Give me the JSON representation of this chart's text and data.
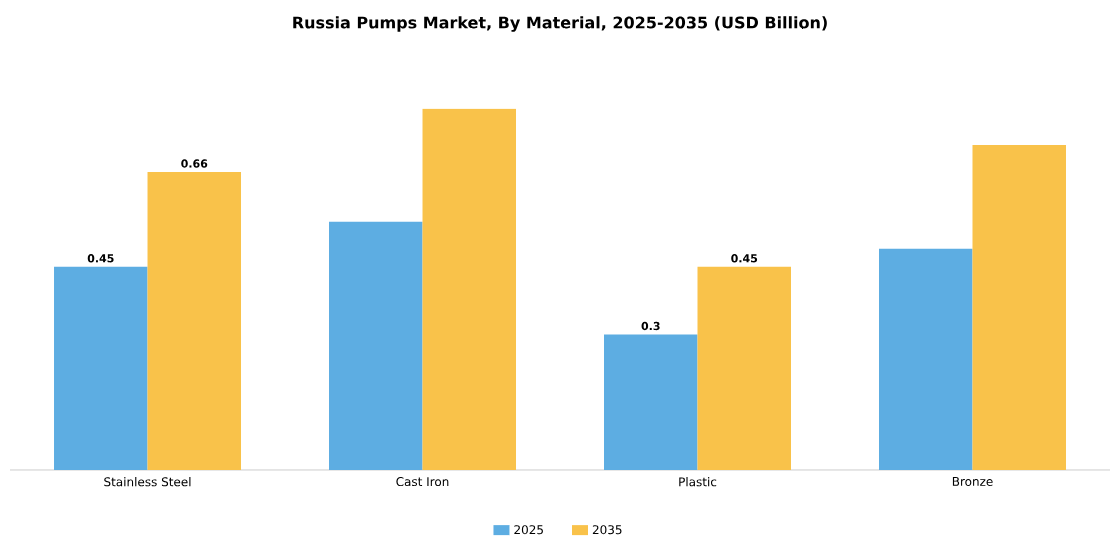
{
  "chart_data": {
    "type": "bar",
    "title": "Russia Pumps Market, By Material, 2025-2035 (USD Billion)",
    "categories": [
      "Stainless Steel",
      "Cast Iron",
      "Plastic",
      "Bronze"
    ],
    "series": [
      {
        "name": "2025",
        "color": "#5dade2",
        "values": [
          0.45,
          0.55,
          0.3,
          0.49
        ],
        "value_labels": [
          "0.45",
          null,
          "0.3",
          null
        ]
      },
      {
        "name": "2035",
        "color": "#f9c24a",
        "values": [
          0.66,
          0.8,
          0.45,
          0.72
        ],
        "value_labels": [
          "0.66",
          null,
          "0.45",
          null
        ]
      }
    ],
    "legend": "bottom"
  }
}
